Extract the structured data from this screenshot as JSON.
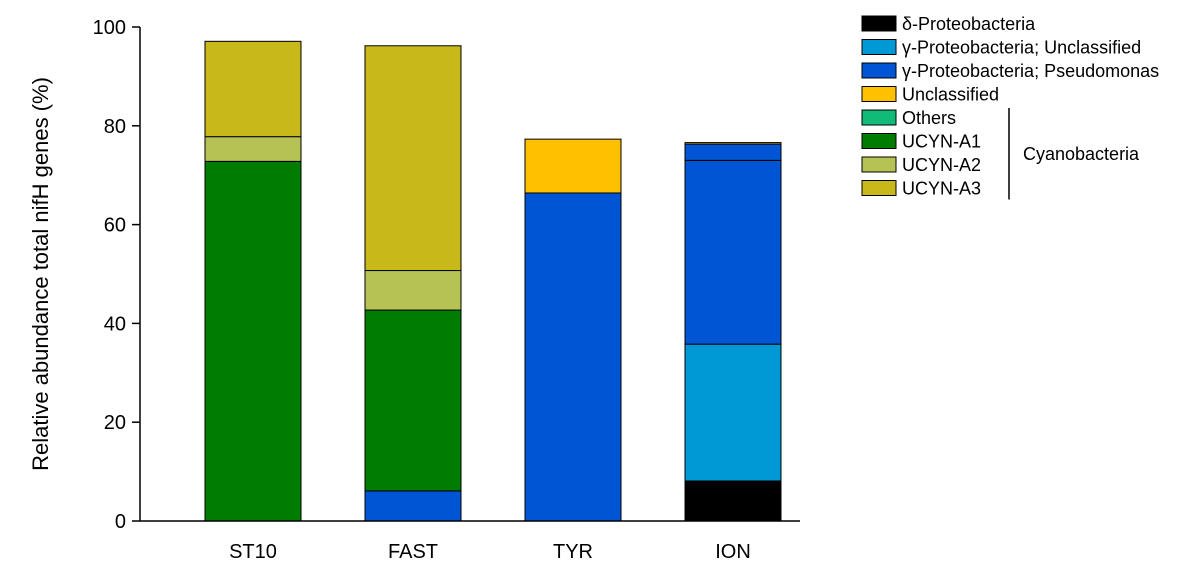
{
  "chart_data": {
    "type": "bar",
    "stacked": true,
    "categories": [
      "ST10",
      "FAST",
      "TYR",
      "ION"
    ],
    "ylabel": "Relative abundance total nifH genes (%)",
    "xlabel": "",
    "title": "",
    "ylim": [
      0,
      100
    ],
    "yticks": [
      0,
      20,
      40,
      60,
      80,
      100
    ],
    "grid": false,
    "legend_position": "right",
    "series": [
      {
        "name": "δ-Proteobacteria",
        "color": "#000000",
        "values": [
          0,
          0,
          0,
          8.1
        ]
      },
      {
        "name": "γ-Proteobacteria; Unclassified",
        "color": "#0099d6",
        "values": [
          0,
          0,
          0,
          27.7
        ]
      },
      {
        "name": "γ-Proteobacteria; Pseudomonas",
        "color": "#0055d4",
        "values": [
          0,
          6.1,
          66.4,
          37.2
        ]
      },
      {
        "name": "Unclassified",
        "color": "#ffc000",
        "values": [
          0,
          0,
          10.9,
          0.3
        ]
      },
      {
        "name": "Others",
        "color": "#11bb77",
        "values": [
          0,
          0,
          0,
          0
        ]
      },
      {
        "name": "UCYN-A1",
        "color": "#007d00",
        "values": [
          72.8,
          36.6,
          0,
          0
        ]
      },
      {
        "name": "UCYN-A2",
        "color": "#b6c354",
        "values": [
          5.0,
          8.0,
          0,
          0
        ]
      },
      {
        "name": "UCYN-A3",
        "color": "#c9b81a",
        "values": [
          19.3,
          45.5,
          0,
          0
        ]
      }
    ],
    "extra_series_ion": {
      "name": "γ-Proteobacteria; Pseudomonas (upper)",
      "value": 3.3
    },
    "group_label": "Cyanobacteria",
    "group_members": [
      "Others",
      "UCYN-A1",
      "UCYN-A2",
      "UCYN-A3"
    ]
  }
}
